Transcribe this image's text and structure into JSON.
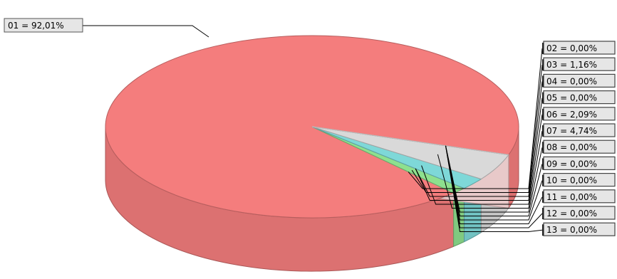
{
  "chart_data": {
    "type": "pie",
    "style": "3d",
    "slices": [
      {
        "label": "01 = 92,01%",
        "value": 92.01,
        "color": "#f47d7d"
      },
      {
        "label": "02 = 0,00%",
        "value": 0.0,
        "color": "#8fd98f"
      },
      {
        "label": "03 = 1,16%",
        "value": 1.16,
        "color": "#8ee08e"
      },
      {
        "label": "04 = 0,00%",
        "value": 0.0,
        "color": "#7fd6d6"
      },
      {
        "label": "05 = 0,00%",
        "value": 0.0,
        "color": "#7fd6d6"
      },
      {
        "label": "06 = 2,09%",
        "value": 2.09,
        "color": "#7ed8d8"
      },
      {
        "label": "07 = 4,74%",
        "value": 4.74,
        "color": "#d9d9d9"
      },
      {
        "label": "08 = 0,00%",
        "value": 0.0,
        "color": "#e0e0e0"
      },
      {
        "label": "09 = 0,00%",
        "value": 0.0,
        "color": "#e6e6e6"
      },
      {
        "label": "10 = 0,00%",
        "value": 0.0,
        "color": "#ececec"
      },
      {
        "label": "11 = 0,00%",
        "value": 0.0,
        "color": "#f1f1f1"
      },
      {
        "label": "12 = 0,00%",
        "value": 0.0,
        "color": "#f5f5f5"
      },
      {
        "label": "13 = 0,00%",
        "value": 0.0,
        "color": "#fafafa"
      }
    ],
    "legend_placement": "right"
  }
}
